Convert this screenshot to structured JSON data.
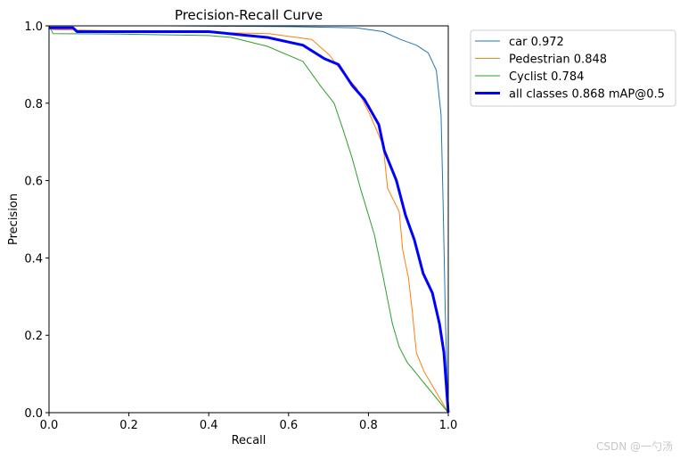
{
  "chart_data": {
    "type": "line",
    "title": "Precision-Recall Curve",
    "xlabel": "Recall",
    "ylabel": "Precision",
    "xlim": [
      0,
      1
    ],
    "ylim": [
      0,
      1
    ],
    "xticks": [
      "0.0",
      "0.2",
      "0.4",
      "0.6",
      "0.8",
      "1.0"
    ],
    "yticks": [
      "0.0",
      "0.2",
      "0.4",
      "0.6",
      "0.8",
      "1.0"
    ],
    "grid": false,
    "legend_position": "outside-top-right",
    "series": [
      {
        "name": "car 0.972",
        "color": "#1f77b4",
        "width": 1,
        "x": [
          0,
          0.3,
          0.6,
          0.77,
          0.837,
          0.88,
          0.92,
          0.95,
          0.97,
          0.982,
          0.987,
          0.993,
          1.0
        ],
        "y": [
          1.0,
          1.0,
          0.998,
          0.995,
          0.985,
          0.965,
          0.95,
          0.93,
          0.885,
          0.77,
          0.54,
          0.23,
          0.0
        ]
      },
      {
        "name": "Pedestrian 0.848",
        "color": "#ff7f0e",
        "width": 1,
        "x": [
          0,
          0.01,
          0.3,
          0.55,
          0.658,
          0.703,
          0.737,
          0.77,
          0.804,
          0.837,
          0.848,
          0.877,
          0.886,
          0.9,
          0.91,
          0.92,
          0.94,
          1.0
        ],
        "y": [
          1.0,
          0.99,
          0.985,
          0.98,
          0.965,
          0.924,
          0.877,
          0.84,
          0.77,
          0.69,
          0.58,
          0.52,
          0.42,
          0.35,
          0.26,
          0.155,
          0.105,
          0.0
        ]
      },
      {
        "name": "Cyclist 0.784",
        "color": "#2ca02c",
        "width": 1,
        "x": [
          0,
          0.01,
          0.15,
          0.4,
          0.457,
          0.547,
          0.636,
          0.68,
          0.714,
          0.737,
          0.76,
          0.78,
          0.815,
          0.837,
          0.86,
          0.877,
          0.897,
          1.0
        ],
        "y": [
          1.0,
          0.98,
          0.979,
          0.975,
          0.97,
          0.947,
          0.908,
          0.845,
          0.8,
          0.73,
          0.655,
          0.58,
          0.46,
          0.35,
          0.23,
          0.17,
          0.13,
          0.0
        ]
      },
      {
        "name": "all classes 0.868 mAP@0.5",
        "color": "#0000ff",
        "width": 3,
        "x": [
          0,
          0.06,
          0.07,
          0.4,
          0.547,
          0.636,
          0.69,
          0.725,
          0.76,
          0.79,
          0.826,
          0.84,
          0.87,
          0.893,
          0.915,
          0.937,
          0.96,
          0.978,
          0.989,
          1.0
        ],
        "y": [
          0.995,
          0.995,
          0.985,
          0.985,
          0.97,
          0.95,
          0.915,
          0.9,
          0.845,
          0.81,
          0.745,
          0.677,
          0.6,
          0.51,
          0.447,
          0.36,
          0.31,
          0.23,
          0.155,
          0.0
        ]
      }
    ]
  },
  "watermark": "CSDN @一勺汤"
}
